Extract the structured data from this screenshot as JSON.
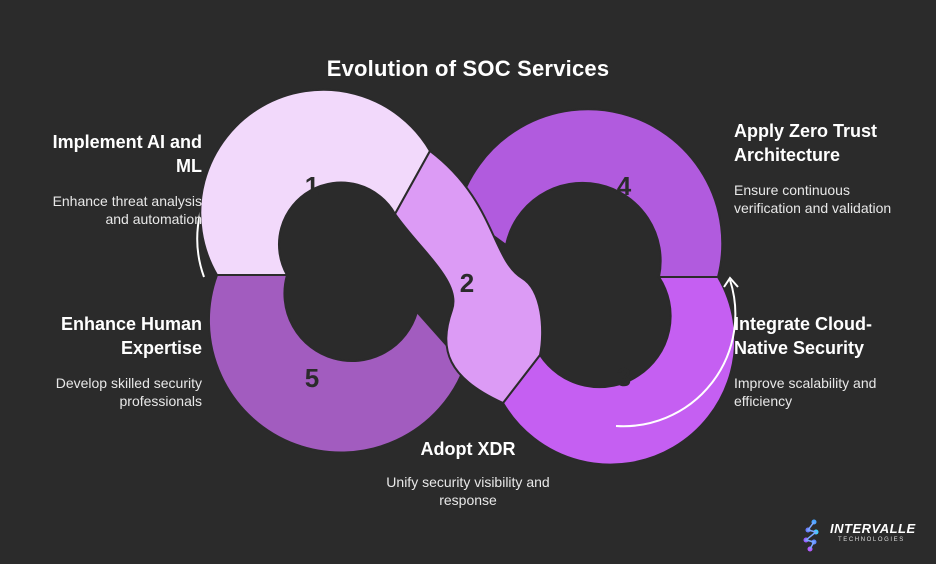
{
  "title": "Evolution of SOC Services",
  "steps": [
    {
      "number": "1",
      "heading": "Implement AI and ML",
      "description": "Enhance threat analysis and automation",
      "color": "#f2d9fb"
    },
    {
      "number": "2",
      "heading": "Adopt XDR",
      "description": "Unify security visibility and response",
      "color": "#dc9bf5"
    },
    {
      "number": "3",
      "heading": "Integrate Cloud-Native Security",
      "description": "Improve scalability and efficiency",
      "color": "#c55ff2"
    },
    {
      "number": "4",
      "heading": "Apply Zero Trust Architecture",
      "description": "Ensure continuous verification and validation",
      "color": "#b15bde"
    },
    {
      "number": "5",
      "heading": "Enhance Human Expertise",
      "description": "Develop skilled security professionals",
      "color": "#a25cbf"
    }
  ],
  "logo": {
    "name": "INTERVALLE",
    "tagline": "TECHNOLOGIES"
  }
}
